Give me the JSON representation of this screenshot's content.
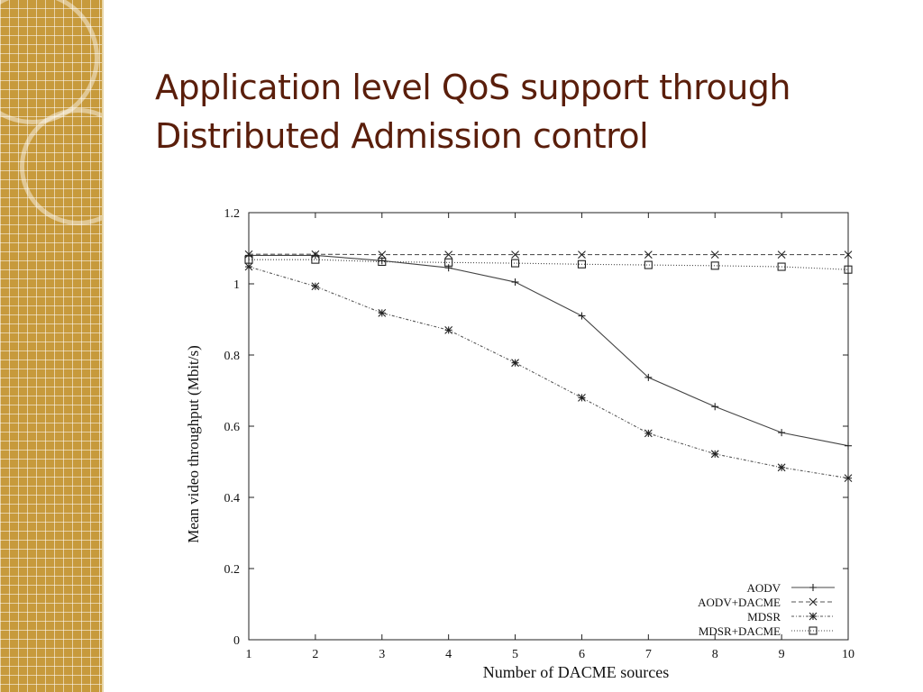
{
  "slide": {
    "title_line1": "Application level QoS support through",
    "title_line2": "Distributed Admission control"
  },
  "theme": {
    "title_color": "#5a1e0b",
    "sidebar_color": "#c79a3c"
  },
  "chart_data": {
    "type": "line",
    "title": "",
    "xlabel": "Number of DACME sources",
    "ylabel": "Mean video throughput (Mbit/s)",
    "xlim": [
      1,
      10
    ],
    "ylim": [
      0,
      1.2
    ],
    "x": [
      1,
      2,
      3,
      4,
      5,
      6,
      7,
      8,
      9,
      10
    ],
    "x_ticks": [
      "1",
      "2",
      "3",
      "4",
      "5",
      "6",
      "7",
      "8",
      "9",
      "10"
    ],
    "y_ticks": [
      "0",
      "0.2",
      "0.4",
      "0.6",
      "0.8",
      "1",
      "1.2"
    ],
    "grid": false,
    "legend_position": "bottom-right",
    "series": [
      {
        "name": "AODV",
        "marker": "plus",
        "dash": "solid",
        "values": [
          1.08,
          1.08,
          1.065,
          1.045,
          1.005,
          0.91,
          0.737,
          0.655,
          0.582,
          0.545
        ]
      },
      {
        "name": "AODV+DACME",
        "marker": "x",
        "dash": "dashed",
        "values": [
          1.083,
          1.083,
          1.082,
          1.082,
          1.082,
          1.082,
          1.082,
          1.082,
          1.082,
          1.082
        ]
      },
      {
        "name": "MDSR",
        "marker": "star",
        "dash": "dotted-dash",
        "values": [
          1.048,
          0.993,
          0.918,
          0.87,
          0.778,
          0.68,
          0.58,
          0.522,
          0.484,
          0.454
        ]
      },
      {
        "name": "MDSR+DACME",
        "marker": "square",
        "dash": "dotted",
        "values": [
          1.068,
          1.068,
          1.062,
          1.06,
          1.058,
          1.055,
          1.053,
          1.051,
          1.048,
          1.04
        ]
      }
    ]
  }
}
